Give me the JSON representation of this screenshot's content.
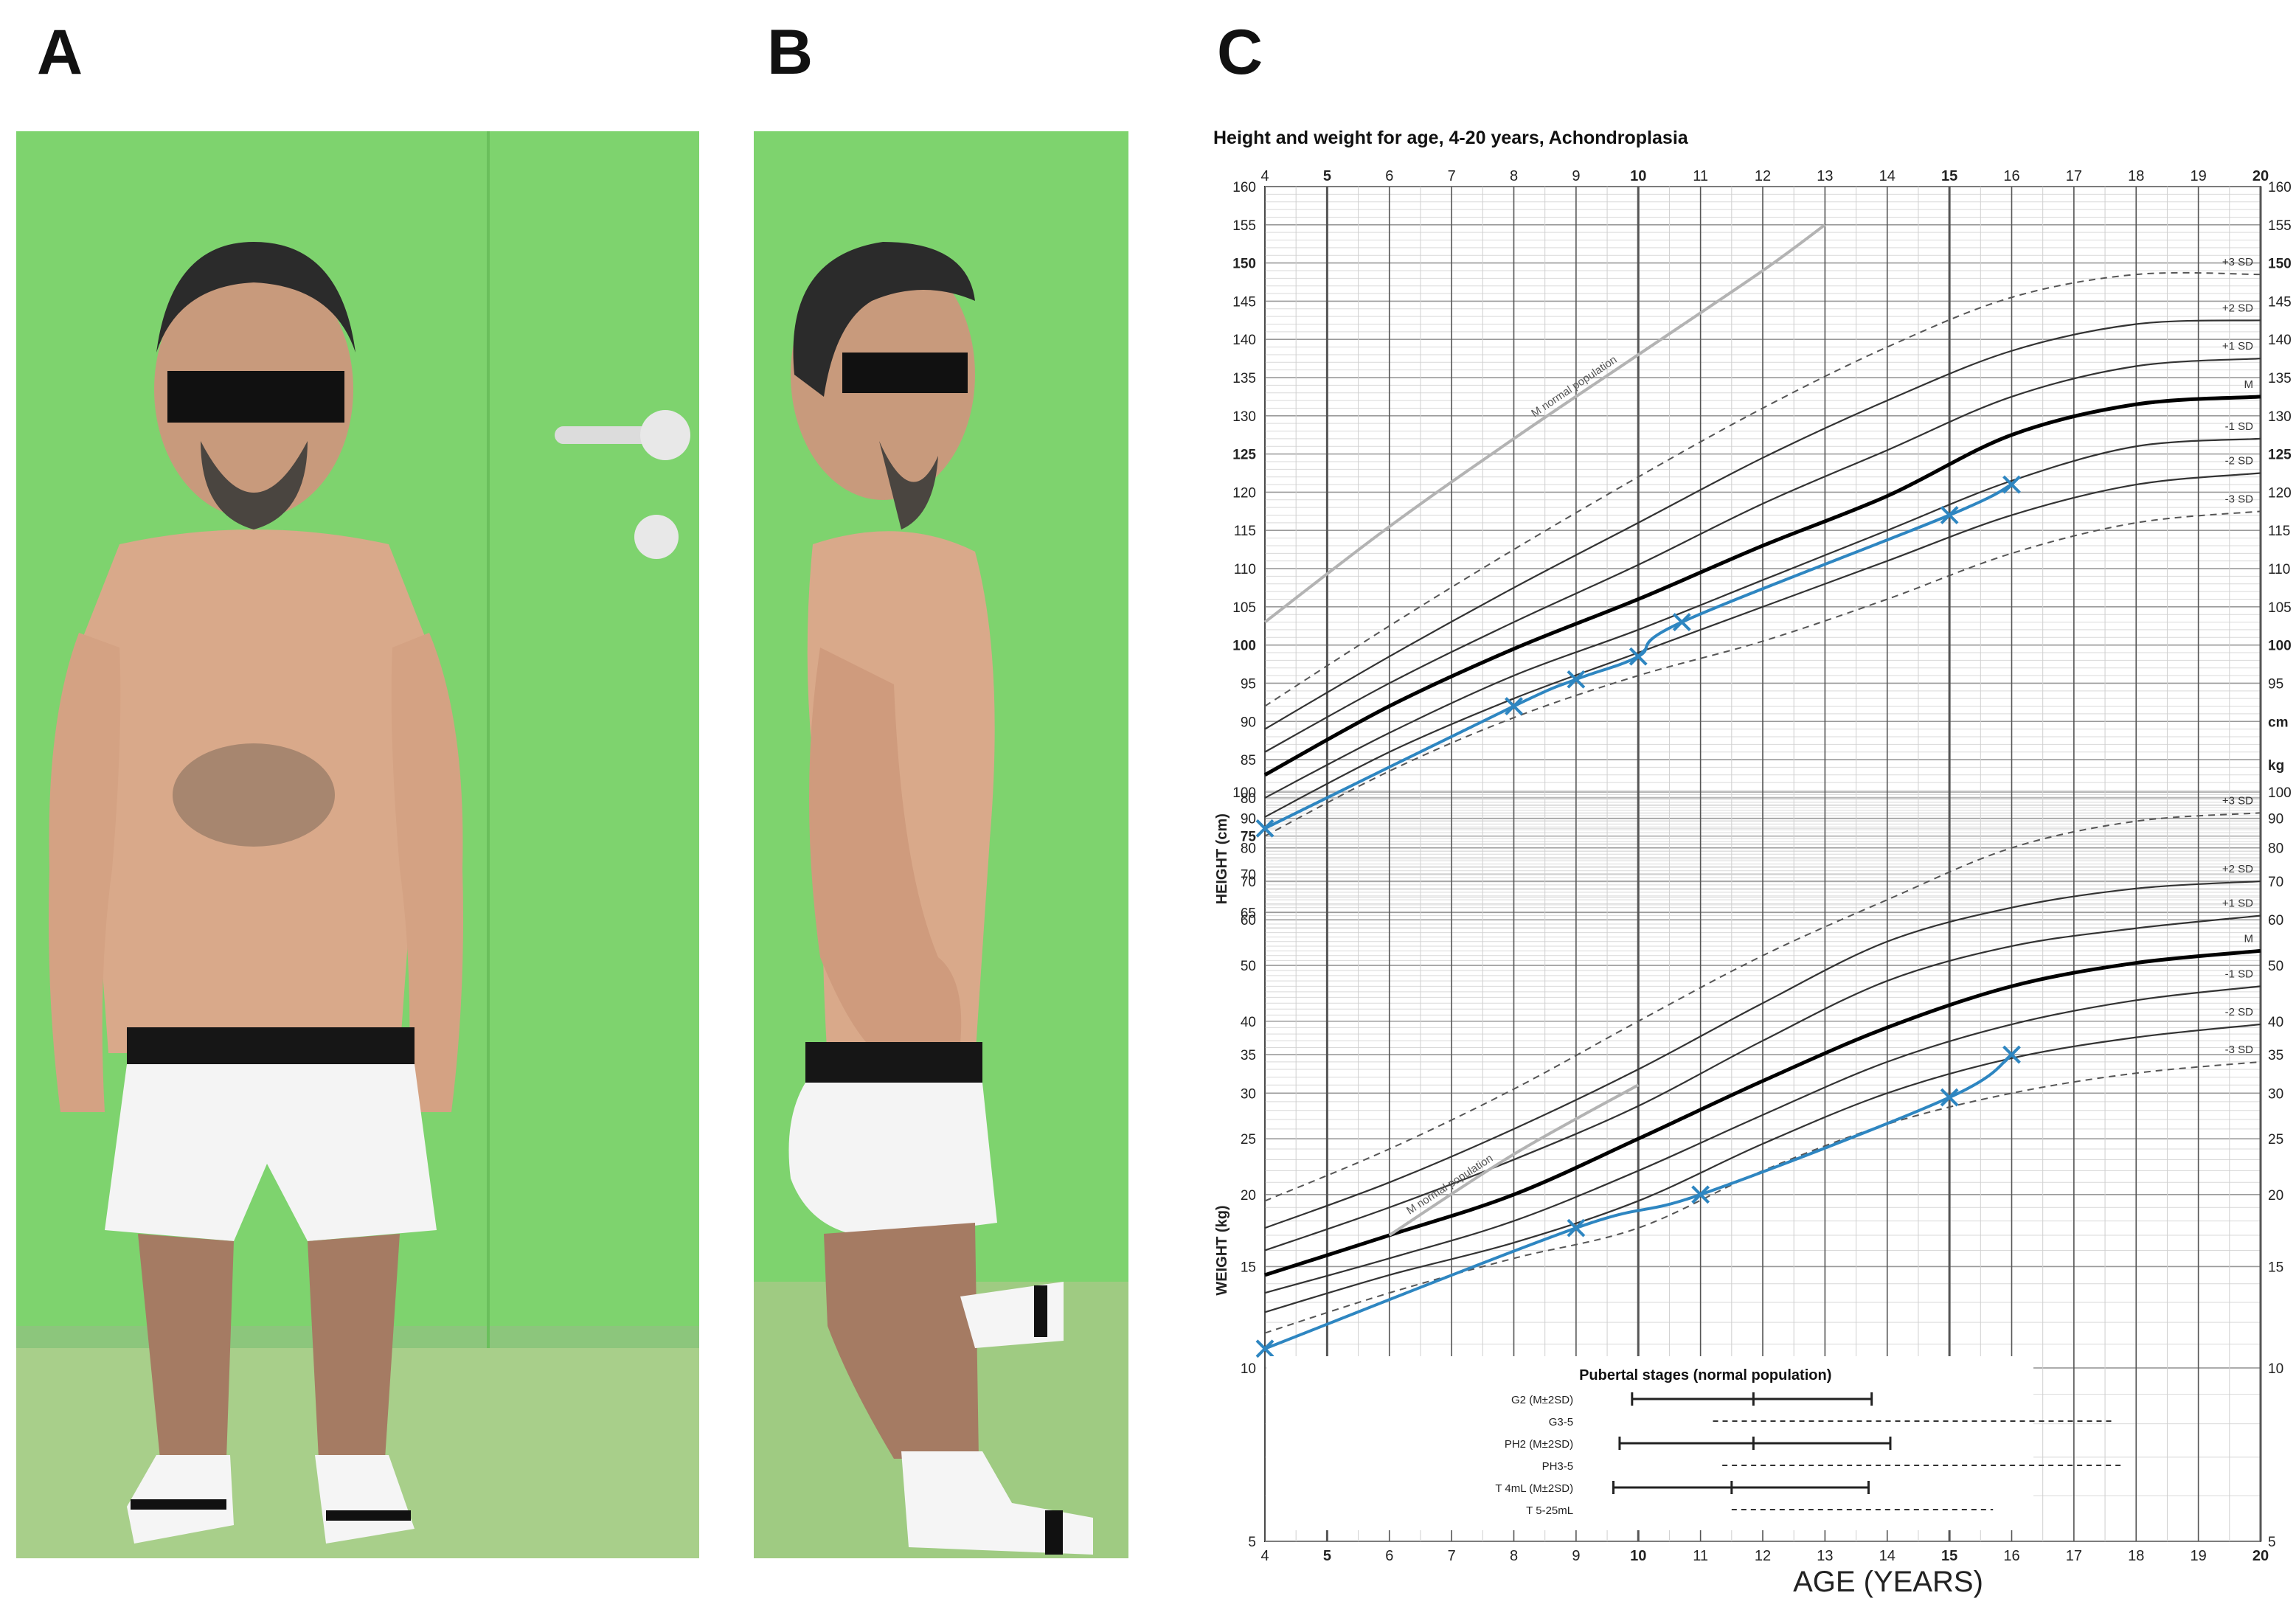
{
  "panels": {
    "a": "A",
    "b": "B",
    "c": "C"
  },
  "chart_data": {
    "type": "line",
    "title": "Height and weight for age, 4-20 years, Achondroplasia",
    "xlabel": "AGE (YEARS)",
    "ylabel_height": "HEIGHT (cm)",
    "ylabel_weight": "WEIGHT (kg)",
    "height_unit": "cm",
    "weight_unit": "kg",
    "x_range": [
      4,
      20
    ],
    "x_ticks": [
      4,
      5,
      6,
      7,
      8,
      9,
      10,
      11,
      12,
      13,
      14,
      15,
      16,
      17,
      18,
      19,
      20
    ],
    "height_range": [
      63,
      160
    ],
    "height_ticks": [
      65,
      70,
      75,
      80,
      85,
      90,
      95,
      100,
      105,
      110,
      115,
      120,
      125,
      130,
      135,
      140,
      145,
      150,
      155,
      160
    ],
    "weight_range": [
      5,
      100
    ],
    "weight_scale": "log",
    "weight_ticks": [
      5,
      10,
      15,
      20,
      25,
      30,
      35,
      40,
      50,
      60,
      70,
      80,
      90,
      100
    ],
    "height_curves": [
      {
        "name": "+3 SD",
        "style": "dashed",
        "x": [
          4,
          6,
          8,
          10,
          12,
          14,
          16,
          18,
          20
        ],
        "y": [
          92,
          102.5,
          112.5,
          122,
          131,
          139,
          145.5,
          148.5,
          148.5
        ]
      },
      {
        "name": "+2 SD",
        "style": "thin",
        "x": [
          4,
          6,
          8,
          10,
          12,
          14,
          16,
          18,
          20
        ],
        "y": [
          89,
          98.5,
          107.5,
          116,
          124.5,
          132,
          138.5,
          142,
          142.5
        ]
      },
      {
        "name": "+1 SD",
        "style": "thin",
        "x": [
          4,
          6,
          8,
          10,
          12,
          14,
          16,
          18,
          20
        ],
        "y": [
          86,
          95,
          103,
          110.5,
          118.5,
          125.5,
          132.5,
          136.5,
          137.5
        ]
      },
      {
        "name": "M",
        "style": "bold",
        "x": [
          4,
          6,
          8,
          10,
          12,
          14,
          16,
          18,
          20
        ],
        "y": [
          83,
          92,
          99.5,
          106,
          113,
          119.5,
          127.5,
          131.5,
          132.5
        ]
      },
      {
        "name": "-1 SD",
        "style": "thin",
        "x": [
          4,
          6,
          8,
          10,
          12,
          14,
          16,
          18,
          20
        ],
        "y": [
          80,
          88.5,
          96,
          102,
          108.5,
          115,
          121.5,
          126,
          127
        ]
      },
      {
        "name": "-2 SD",
        "style": "thin",
        "x": [
          4,
          6,
          8,
          10,
          12,
          14,
          16,
          18,
          20
        ],
        "y": [
          77.5,
          86,
          93,
          99,
          105,
          111,
          117,
          121,
          122.5
        ]
      },
      {
        "name": "-3 SD",
        "style": "dashed",
        "x": [
          4,
          6,
          8,
          10,
          12,
          14,
          16,
          18,
          20
        ],
        "y": [
          75,
          83.5,
          90.5,
          96,
          100.5,
          106,
          112,
          116,
          117.5
        ]
      },
      {
        "name": "M normal population",
        "style": "grey",
        "x": [
          4,
          6,
          8,
          10,
          12,
          13
        ],
        "y": [
          103,
          115.5,
          127,
          138,
          149,
          155
        ]
      }
    ],
    "weight_curves": [
      {
        "name": "+3 SD",
        "style": "dashed",
        "x": [
          4,
          6,
          8,
          10,
          12,
          14,
          16,
          18,
          20
        ],
        "y": [
          19.5,
          24,
          30.5,
          40,
          52,
          65,
          80,
          89,
          92
        ]
      },
      {
        "name": "+2 SD",
        "style": "thin",
        "x": [
          4,
          6,
          8,
          10,
          12,
          14,
          16,
          18,
          20
        ],
        "y": [
          17.5,
          21,
          26,
          33,
          43,
          55,
          63,
          68,
          70
        ]
      },
      {
        "name": "+1 SD",
        "style": "thin",
        "x": [
          4,
          6,
          8,
          10,
          12,
          14,
          16,
          18,
          20
        ],
        "y": [
          16,
          19,
          23,
          28.5,
          37,
          47,
          54,
          58,
          61
        ]
      },
      {
        "name": "M",
        "style": "bold",
        "x": [
          4,
          6,
          8,
          10,
          12,
          14,
          16,
          18,
          20
        ],
        "y": [
          14.5,
          17,
          20,
          25,
          31.5,
          39,
          46,
          50.5,
          53
        ]
      },
      {
        "name": "-1 SD",
        "style": "thin",
        "x": [
          4,
          6,
          8,
          10,
          12,
          14,
          16,
          18,
          20
        ],
        "y": [
          13.5,
          15.5,
          18,
          22,
          27.5,
          34,
          39.5,
          43.5,
          46
        ]
      },
      {
        "name": "-2 SD",
        "style": "thin",
        "x": [
          4,
          6,
          8,
          10,
          12,
          14,
          16,
          18,
          20
        ],
        "y": [
          12.5,
          14.5,
          16.5,
          19.5,
          24.5,
          30,
          34.5,
          37.5,
          39.5
        ]
      },
      {
        "name": "-3 SD",
        "style": "dashed",
        "x": [
          4,
          6,
          8,
          10,
          12,
          14,
          16,
          18,
          20
        ],
        "y": [
          11.5,
          13.5,
          15.5,
          17.5,
          22,
          26.5,
          30,
          32.5,
          34
        ]
      },
      {
        "name": "M normal population",
        "style": "grey",
        "x": [
          6,
          8,
          10
        ],
        "y": [
          17,
          23.5,
          31
        ]
      }
    ],
    "patient_height": {
      "x": [
        4,
        8,
        9,
        10,
        10.7,
        15,
        16
      ],
      "y": [
        76,
        92,
        95.5,
        98.5,
        103,
        117,
        121
      ]
    },
    "patient_weight": {
      "x": [
        4,
        9,
        11,
        15,
        16
      ],
      "y": [
        10.8,
        17.5,
        20,
        29.5,
        35
      ]
    },
    "sd_labels": [
      "+3 SD",
      "+2 SD",
      "+1 SD",
      "M",
      "-1 SD",
      "-2 SD",
      "-3 SD"
    ],
    "normal_population_label": "M normal population",
    "pubertal": {
      "title": "Pubertal stages (normal population)",
      "rows": [
        {
          "label": "G2 (M±2SD)",
          "style": "solid",
          "start": 9.9,
          "mid": 11.85,
          "end": 13.75
        },
        {
          "label": "G3-5",
          "style": "dashed",
          "start": 11.2,
          "end": 17.6
        },
        {
          "label": "PH2 (M±2SD)",
          "style": "solid",
          "start": 9.7,
          "mid": 11.85,
          "end": 14.05
        },
        {
          "label": "PH3-5",
          "style": "dashed",
          "start": 11.35,
          "end": 17.8
        },
        {
          "label": "T 4mL (M±2SD)",
          "style": "solid",
          "start": 9.6,
          "mid": 11.5,
          "end": 13.7
        },
        {
          "label": "T 5-25mL",
          "style": "dashed",
          "start": 11.5,
          "end": 15.7
        }
      ]
    },
    "colors": {
      "patient": "#2E86C1",
      "curve": "#333333",
      "median": "#000000",
      "normal": "#b3b3b3",
      "grid": "#d9d9d9"
    }
  }
}
